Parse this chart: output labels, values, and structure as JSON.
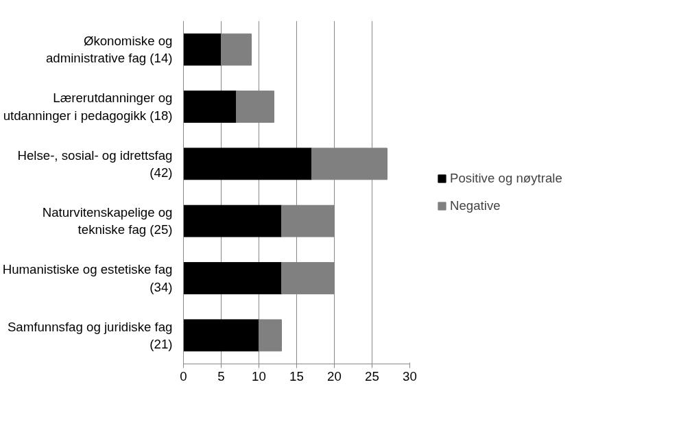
{
  "chart_data": {
    "type": "bar",
    "orientation": "horizontal",
    "stacked": true,
    "categories": [
      "Økonomiske og\nadministrative fag (14)",
      "Lærerutdanninger og\nutdanninger i pedagogikk (18)",
      "Helse-, sosial- og idrettsfag\n(42)",
      "Naturvitenskapelige og\ntekniske fag (25)",
      "Humanistiske og estetiske fag\n(34)",
      "Samfunnsfag og juridiske fag\n(21)"
    ],
    "series": [
      {
        "name": "Positive og nøytrale",
        "color": "#000000",
        "values": [
          5,
          7,
          17,
          13,
          13,
          10
        ]
      },
      {
        "name": "Negative",
        "color": "#808080",
        "values": [
          4,
          5,
          10,
          7,
          7,
          3
        ]
      }
    ],
    "xlim": [
      0,
      30
    ],
    "xticks": [
      0,
      5,
      10,
      15,
      20,
      25,
      30
    ],
    "grid": "x",
    "legend": "right"
  }
}
